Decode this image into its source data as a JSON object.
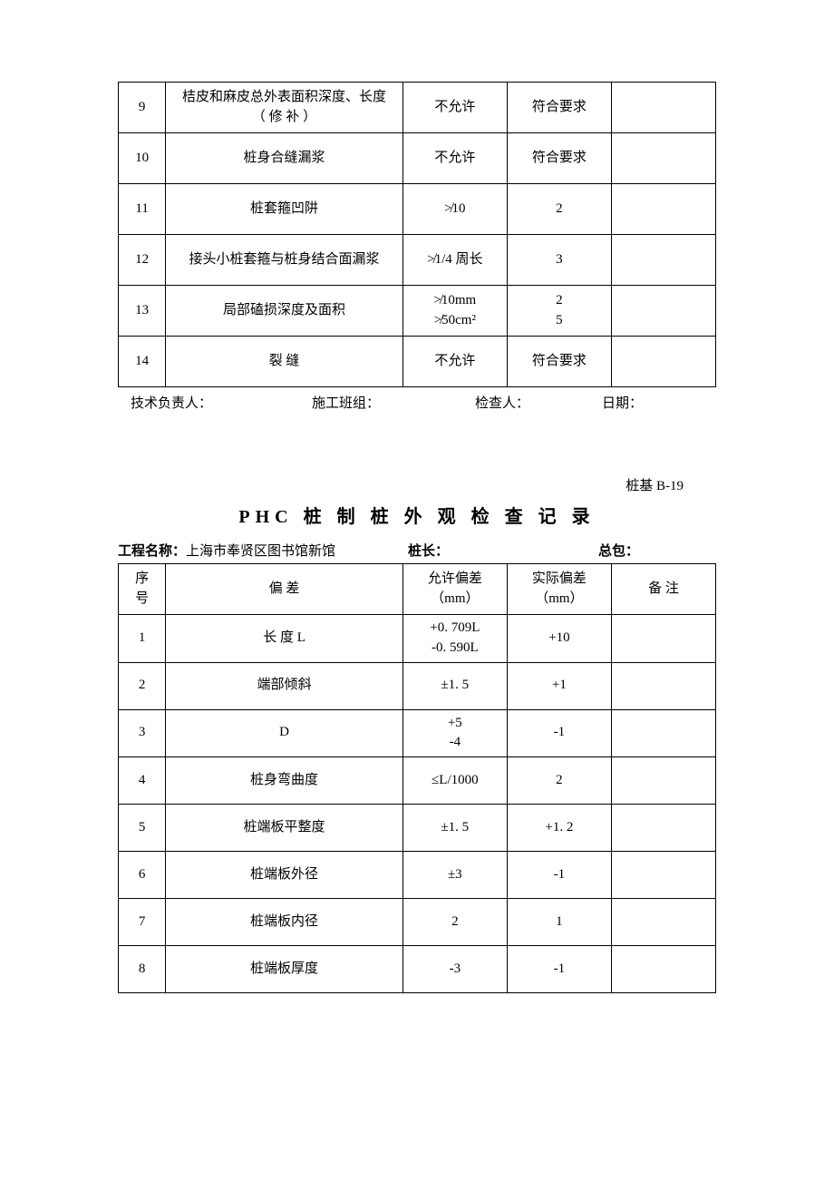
{
  "table1": {
    "rows": [
      {
        "no": "9",
        "item": "桔皮和麻皮总外表面积深度、长度\n（ 修 补 ）",
        "tol": "不允许",
        "actual": "符合要求",
        "note": ""
      },
      {
        "no": "10",
        "item": "桩身合缝漏浆",
        "tol": "不允许",
        "actual": "符合要求",
        "note": ""
      },
      {
        "no": "11",
        "item": "桩套箍凹阱",
        "tol": "≯10",
        "actual": "2",
        "note": ""
      },
      {
        "no": "12",
        "item": "接头小桩套箍与桩身结合面漏浆",
        "tol": "≯1/4 周长",
        "actual": "3",
        "note": ""
      },
      {
        "no": "13",
        "item": "局部磕损深度及面积",
        "tol": "≯10mm\n≯50cm²",
        "actual": "2\n5",
        "note": ""
      },
      {
        "no": "14",
        "item": "裂  缝",
        "tol": "不允许",
        "actual": "符合要求",
        "note": ""
      }
    ]
  },
  "signatures": {
    "s1": "技术负责人：",
    "s2": "施工班组：",
    "s3": "检查人：",
    "s4": "日期："
  },
  "docCode": "桩基 B-19",
  "title": "PHC 桩 制 桩 外 观 检 查 记 录",
  "meta": {
    "projectLabel": "工程名称：",
    "projectValue": "上海市奉贤区图书馆新馆",
    "lenLabel": "桩长：",
    "contractorLabel": "总包："
  },
  "table2": {
    "head": {
      "c1": "序\n号",
      "c2": "偏      差",
      "c3": "允许偏差\n（mm）",
      "c4": "实际偏差\n（mm）",
      "c5": "备  注"
    },
    "rows": [
      {
        "no": "1",
        "item": "长 度 L",
        "tol": "+0. 709L\n-0. 590L",
        "actual": "+10",
        "note": ""
      },
      {
        "no": "2",
        "item": "端部倾斜",
        "tol": "±1. 5",
        "actual": "+1",
        "note": ""
      },
      {
        "no": "3",
        "item": "D",
        "tol": "+5\n-4",
        "actual": "-1",
        "note": ""
      },
      {
        "no": "4",
        "item": "桩身弯曲度",
        "tol": "≤L/1000",
        "actual": "2",
        "note": ""
      },
      {
        "no": "5",
        "item": "桩端板平整度",
        "tol": "±1. 5",
        "actual": "+1. 2",
        "note": ""
      },
      {
        "no": "6",
        "item": "桩端板外径",
        "tol": "±3",
        "actual": "-1",
        "note": ""
      },
      {
        "no": "7",
        "item": "桩端板内径",
        "tol": "2",
        "actual": "1",
        "note": ""
      },
      {
        "no": "8",
        "item": "桩端板厚度",
        "tol": "-3",
        "actual": "-1",
        "note": ""
      }
    ]
  },
  "colWidths": {
    "c1": 50,
    "c2": 250,
    "c3": 110,
    "c4": 110,
    "c5": 110
  }
}
